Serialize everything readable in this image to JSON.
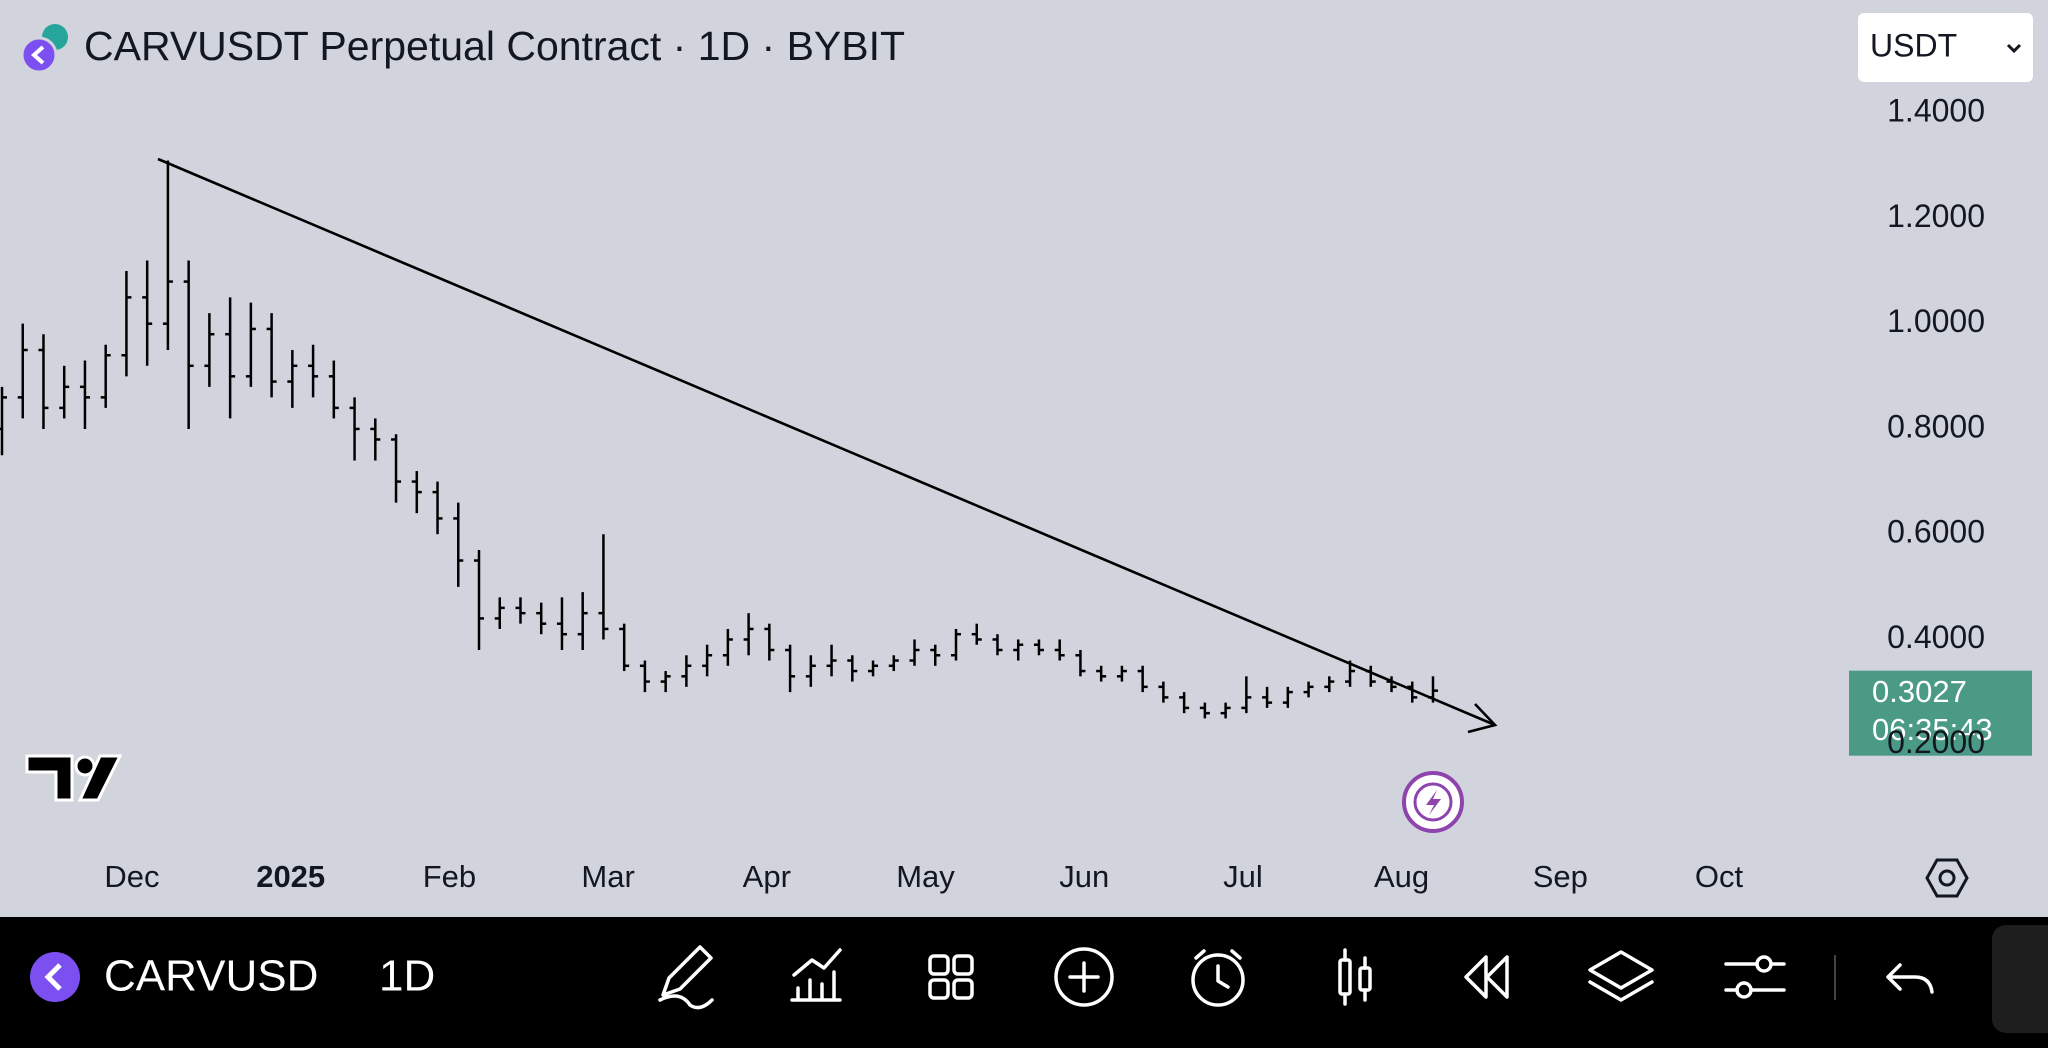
{
  "header": {
    "title": "CARVUSDT Perpetual Contract · 1D · BYBIT",
    "currency": "USDT"
  },
  "chart_data": {
    "type": "ohlc",
    "color": "#000000",
    "open": [
      0.8,
      0.86,
      0.95,
      0.84,
      0.88,
      0.86,
      0.94,
      1.05,
      1.0,
      1.08,
      0.92,
      0.98,
      0.9,
      0.99,
      0.89,
      0.92,
      0.9,
      0.84,
      0.8,
      0.78,
      0.7,
      0.68,
      0.63,
      0.55,
      0.44,
      0.46,
      0.45,
      0.43,
      0.41,
      0.45,
      0.42,
      0.35,
      0.32,
      0.33,
      0.35,
      0.37,
      0.4,
      0.42,
      0.38,
      0.33,
      0.35,
      0.36,
      0.34,
      0.35,
      0.36,
      0.38,
      0.37,
      0.41,
      0.4,
      0.38,
      0.39,
      0.38,
      0.37,
      0.34,
      0.33,
      0.34,
      0.31,
      0.29,
      0.27,
      0.26,
      0.27,
      0.29,
      0.28,
      0.3,
      0.31,
      0.32,
      0.34,
      0.32,
      0.31,
      0.29
    ],
    "high": [
      0.88,
      1.0,
      0.98,
      0.92,
      0.93,
      0.96,
      1.1,
      1.12,
      1.31,
      1.12,
      1.02,
      1.05,
      1.04,
      1.02,
      0.95,
      0.96,
      0.93,
      0.86,
      0.82,
      0.79,
      0.72,
      0.7,
      0.66,
      0.57,
      0.48,
      0.48,
      0.47,
      0.48,
      0.49,
      0.6,
      0.43,
      0.36,
      0.34,
      0.37,
      0.39,
      0.42,
      0.45,
      0.43,
      0.39,
      0.37,
      0.39,
      0.37,
      0.36,
      0.37,
      0.4,
      0.39,
      0.42,
      0.43,
      0.41,
      0.4,
      0.4,
      0.4,
      0.38,
      0.35,
      0.35,
      0.35,
      0.32,
      0.3,
      0.28,
      0.28,
      0.33,
      0.31,
      0.31,
      0.32,
      0.33,
      0.36,
      0.35,
      0.33,
      0.32,
      0.33
    ],
    "low": [
      0.75,
      0.82,
      0.8,
      0.82,
      0.8,
      0.84,
      0.9,
      0.92,
      0.95,
      0.8,
      0.88,
      0.82,
      0.88,
      0.86,
      0.84,
      0.86,
      0.82,
      0.74,
      0.74,
      0.66,
      0.64,
      0.6,
      0.5,
      0.38,
      0.42,
      0.43,
      0.41,
      0.38,
      0.38,
      0.4,
      0.34,
      0.3,
      0.3,
      0.31,
      0.33,
      0.35,
      0.37,
      0.36,
      0.3,
      0.31,
      0.33,
      0.32,
      0.33,
      0.34,
      0.35,
      0.35,
      0.36,
      0.39,
      0.37,
      0.36,
      0.37,
      0.36,
      0.33,
      0.32,
      0.32,
      0.3,
      0.28,
      0.26,
      0.25,
      0.25,
      0.26,
      0.27,
      0.27,
      0.29,
      0.3,
      0.31,
      0.31,
      0.3,
      0.28,
      0.28
    ],
    "close": [
      0.86,
      0.95,
      0.84,
      0.88,
      0.86,
      0.94,
      1.05,
      1.0,
      1.08,
      0.92,
      0.98,
      0.9,
      0.99,
      0.89,
      0.92,
      0.9,
      0.84,
      0.8,
      0.78,
      0.7,
      0.68,
      0.63,
      0.55,
      0.44,
      0.46,
      0.45,
      0.43,
      0.41,
      0.45,
      0.42,
      0.35,
      0.32,
      0.33,
      0.35,
      0.37,
      0.4,
      0.42,
      0.38,
      0.33,
      0.35,
      0.36,
      0.34,
      0.35,
      0.36,
      0.38,
      0.37,
      0.41,
      0.4,
      0.38,
      0.39,
      0.38,
      0.37,
      0.34,
      0.33,
      0.34,
      0.31,
      0.29,
      0.27,
      0.26,
      0.27,
      0.29,
      0.28,
      0.3,
      0.31,
      0.32,
      0.34,
      0.32,
      0.31,
      0.29,
      0.3027
    ],
    "last_price": "0.3027",
    "countdown": "06:35:43",
    "ylim": [
      0,
      1.615
    ],
    "yticks": [
      {
        "value": 0.2,
        "label": "0.2000"
      },
      {
        "value": 0.4,
        "label": "0.4000"
      },
      {
        "value": 0.6,
        "label": "0.6000"
      },
      {
        "value": 0.8,
        "label": "0.8000"
      },
      {
        "value": 1.0,
        "label": "1.0000"
      },
      {
        "value": 1.2,
        "label": "1.2000"
      },
      {
        "value": 1.4,
        "label": "1.4000"
      }
    ],
    "xticks": [
      "Dec",
      "2025",
      "Feb",
      "Mar",
      "Apr",
      "May",
      "Jun",
      "Jul",
      "Aug",
      "Sep",
      "Oct"
    ]
  },
  "toolbar": {
    "symbol": "CARVUSD",
    "interval": "1D"
  }
}
